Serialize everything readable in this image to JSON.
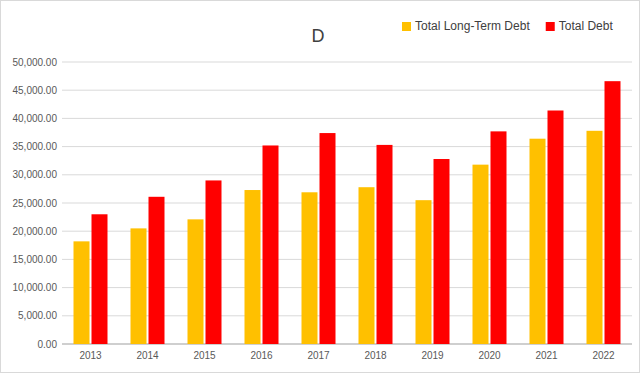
{
  "chart_data": {
    "type": "bar",
    "title": "D",
    "categories": [
      "2013",
      "2014",
      "2015",
      "2016",
      "2017",
      "2018",
      "2019",
      "2020",
      "2021",
      "2022"
    ],
    "series": [
      {
        "name": "Total Long-Term Debt",
        "color": "#ffc000",
        "values": [
          18200,
          20500,
          22100,
          27300,
          26900,
          27800,
          25500,
          31800,
          36400,
          37800
        ]
      },
      {
        "name": "Total Debt",
        "color": "#ff0000",
        "values": [
          23000,
          26100,
          29000,
          35200,
          37400,
          35300,
          32800,
          37700,
          41400,
          46600
        ]
      }
    ],
    "ylim": [
      0,
      50000
    ],
    "yticks": [
      {
        "value": 0,
        "label": "0.00"
      },
      {
        "value": 5000,
        "label": "5,000.00"
      },
      {
        "value": 10000,
        "label": "10,000.00"
      },
      {
        "value": 15000,
        "label": "15,000.00"
      },
      {
        "value": 20000,
        "label": "20,000.00"
      },
      {
        "value": 25000,
        "label": "25,000.00"
      },
      {
        "value": 30000,
        "label": "30,000.00"
      },
      {
        "value": 35000,
        "label": "35,000.00"
      },
      {
        "value": 40000,
        "label": "40,000.00"
      },
      {
        "value": 45000,
        "label": "45,000.00"
      },
      {
        "value": 50000,
        "label": "50,000.00"
      }
    ],
    "grid": true,
    "legend": "top-right"
  }
}
